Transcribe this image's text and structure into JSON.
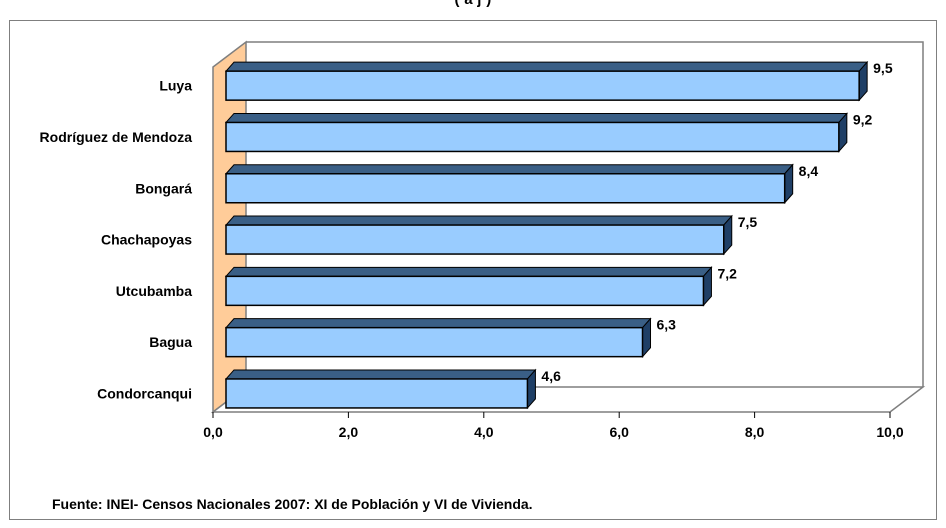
{
  "title_fragment": "(       a  j  )",
  "source_note": "Fuente: INEI- Censos Nacionales 2007: XI de Población y VI de Vivienda.",
  "colors": {
    "bar_front": "#99ccff",
    "bar_top": "#3a5f86",
    "bar_side": "#1f3f66",
    "wall": "#ffcc99",
    "frame": "#7f7f7f"
  },
  "chart_data": {
    "type": "bar",
    "orientation": "horizontal",
    "style": "3d-clustered",
    "categories": [
      "Luya",
      "Rodríguez de Mendoza",
      "Bongará",
      "Chachapoyas",
      "Utcubamba",
      "Bagua",
      "Condorcanqui"
    ],
    "values": [
      9.5,
      9.2,
      8.4,
      7.5,
      7.2,
      6.3,
      4.6
    ],
    "value_labels": [
      "9,5",
      "9,2",
      "8,4",
      "7,5",
      "7,2",
      "6,3",
      "4,6"
    ],
    "xlim": [
      0,
      10
    ],
    "xticks": [
      0,
      2,
      4,
      6,
      8,
      10
    ],
    "xtick_labels": [
      "0,0",
      "2,0",
      "4,0",
      "6,0",
      "8,0",
      "10,0"
    ],
    "grid": false,
    "legend": "none"
  }
}
